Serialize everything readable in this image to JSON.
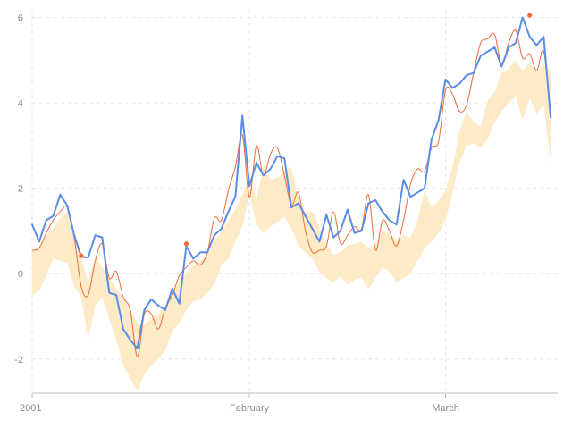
{
  "chart_data": {
    "type": "line",
    "x_unit": "day",
    "x_start": "2001-01-01",
    "x": [
      0,
      1,
      2,
      3,
      4,
      5,
      6,
      7,
      8,
      9,
      10,
      11,
      12,
      13,
      14,
      15,
      16,
      17,
      18,
      19,
      20,
      21,
      22,
      23,
      24,
      25,
      26,
      27,
      28,
      29,
      30,
      31,
      32,
      33,
      34,
      35,
      36,
      37,
      38,
      39,
      40,
      41,
      42,
      43,
      44,
      45,
      46,
      47,
      48,
      49,
      50,
      51,
      52,
      53,
      54,
      55,
      56,
      57,
      58,
      59,
      60,
      61,
      62,
      63,
      64,
      65,
      66,
      67,
      68,
      69,
      70,
      71,
      72,
      73,
      74
    ],
    "xlim": [
      0,
      75
    ],
    "ylim": [
      -2.8,
      6.2
    ],
    "x_ticks": [
      {
        "x": 0,
        "label": "2001"
      },
      {
        "x": 31,
        "label": "February"
      },
      {
        "x": 59,
        "label": "March"
      }
    ],
    "y_ticks": [
      {
        "y": -2,
        "label": "-2"
      },
      {
        "y": 0,
        "label": "0"
      },
      {
        "y": 2,
        "label": "2"
      },
      {
        "y": 4,
        "label": "4"
      },
      {
        "y": 6,
        "label": "6"
      }
    ],
    "grid": true,
    "series": [
      {
        "type": "area",
        "color": "#fdebc8",
        "upper": [
          0.55,
          0.6,
          0.9,
          1.05,
          1.3,
          1.45,
          1.0,
          0.35,
          -0.2,
          0.4,
          0.15,
          -0.1,
          -0.35,
          -0.55,
          -0.85,
          -1.15,
          -1.2,
          -1.05,
          -0.95,
          -0.75,
          -0.4,
          -0.2,
          0.0,
          0.2,
          0.3,
          0.45,
          0.75,
          1.0,
          1.25,
          1.5,
          1.85,
          2.3,
          1.75,
          2.5,
          2.2,
          2.25,
          2.4,
          2.5,
          1.75,
          1.45,
          1.45,
          1.1,
          0.7,
          0.45,
          0.5,
          0.65,
          0.7,
          0.75,
          0.6,
          0.7,
          1.0,
          0.95,
          0.8,
          0.9,
          0.85,
          1.25,
          1.95,
          1.55,
          1.7,
          1.95,
          2.5,
          3.35,
          3.8,
          3.55,
          3.45,
          4.05,
          4.25,
          4.7,
          4.8,
          5.0,
          4.75,
          4.95,
          4.7,
          4.9,
          4.75
        ],
        "lower": [
          -0.5,
          -0.4,
          -0.05,
          0.35,
          0.3,
          0.25,
          -0.3,
          -0.55,
          -1.55,
          -0.75,
          -0.55,
          -1.05,
          -1.55,
          -2.15,
          -2.45,
          -2.75,
          -2.35,
          -2.15,
          -2.0,
          -1.8,
          -1.35,
          -1.15,
          -0.85,
          -0.65,
          -0.6,
          -0.45,
          -0.25,
          0.2,
          0.35,
          0.75,
          1.1,
          1.85,
          1.15,
          0.95,
          1.1,
          1.2,
          1.35,
          1.05,
          0.65,
          0.5,
          0.35,
          0.05,
          -0.1,
          -0.2,
          -0.05,
          -0.25,
          -0.15,
          -0.1,
          -0.35,
          -0.1,
          0.15,
          0.05,
          -0.2,
          -0.1,
          0.0,
          0.3,
          0.6,
          0.75,
          0.95,
          1.25,
          1.9,
          2.6,
          3.0,
          3.05,
          2.95,
          3.15,
          3.55,
          3.8,
          4.0,
          4.15,
          3.6,
          4.1,
          3.75,
          3.95,
          2.6
        ]
      },
      {
        "type": "line",
        "smooth": true,
        "color": "#f26b3a",
        "values": [
          0.55,
          0.6,
          0.95,
          1.25,
          1.45,
          1.55,
          0.85,
          -0.3,
          -0.5,
          0.3,
          0.7,
          -0.1,
          0.05,
          -0.55,
          -0.85,
          -1.95,
          -0.95,
          -0.95,
          -1.3,
          -0.8,
          -0.5,
          -0.05,
          0.15,
          0.3,
          0.2,
          0.5,
          1.3,
          1.25,
          1.95,
          2.5,
          3.25,
          1.8,
          3.0,
          2.3,
          2.8,
          2.95,
          2.3,
          1.6,
          1.9,
          1.0,
          0.5,
          0.55,
          0.65,
          1.45,
          0.7,
          0.9,
          1.1,
          1.05,
          1.85,
          0.55,
          1.25,
          1.0,
          0.65,
          1.25,
          2.1,
          2.45,
          2.4,
          2.95,
          3.1,
          4.3,
          4.2,
          3.8,
          3.95,
          4.7,
          5.4,
          5.5,
          5.6,
          4.9,
          5.4,
          5.7,
          5.05,
          5.15,
          4.75,
          5.2,
          3.7
        ],
        "highlights": [
          {
            "x": 7,
            "y": 0.42
          },
          {
            "x": 22,
            "y": 0.7
          },
          {
            "x": 71,
            "y": 6.05
          }
        ]
      },
      {
        "type": "line",
        "smooth": false,
        "color": "#5a8ce8",
        "values": [
          1.15,
          0.75,
          1.25,
          1.35,
          1.85,
          1.6,
          0.9,
          0.4,
          0.38,
          0.9,
          0.85,
          -0.45,
          -0.5,
          -1.3,
          -1.55,
          -1.75,
          -0.85,
          -0.6,
          -0.75,
          -0.85,
          -0.35,
          -0.7,
          0.65,
          0.35,
          0.5,
          0.5,
          0.9,
          1.05,
          1.45,
          1.8,
          3.7,
          2.05,
          2.6,
          2.3,
          2.45,
          2.75,
          2.7,
          1.55,
          1.65,
          1.35,
          1.05,
          0.75,
          1.38,
          0.85,
          1.0,
          1.5,
          0.95,
          1.0,
          1.65,
          1.72,
          1.45,
          1.25,
          1.15,
          2.2,
          1.8,
          1.9,
          2.0,
          3.15,
          3.6,
          4.55,
          4.35,
          4.45,
          4.65,
          4.7,
          5.1,
          5.2,
          5.3,
          4.85,
          5.3,
          5.4,
          6.0,
          5.55,
          5.35,
          5.55,
          3.65
        ]
      }
    ]
  }
}
